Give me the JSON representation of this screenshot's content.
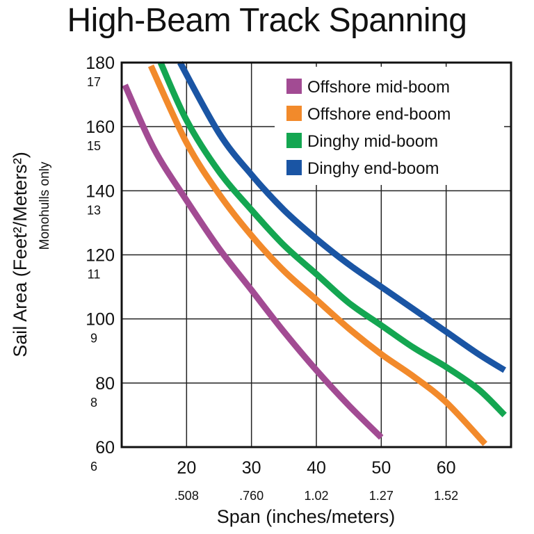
{
  "chart_data": {
    "type": "line",
    "title": "High-Beam Track Spanning",
    "xlabel": "Span (inches/meters)",
    "ylabel": "Sail Area (Feet²/Meters²)",
    "ylabel_sub": "Monohulls only",
    "xlim": [
      10,
      70
    ],
    "ylim": [
      60,
      180
    ],
    "x_ticks": [
      {
        "value": 20,
        "label": "20",
        "sublabel": ".508"
      },
      {
        "value": 30,
        "label": "30",
        "sublabel": ".760"
      },
      {
        "value": 40,
        "label": "40",
        "sublabel": "1.02"
      },
      {
        "value": 50,
        "label": "50",
        "sublabel": "1.27"
      },
      {
        "value": 60,
        "label": "60",
        "sublabel": "1.52"
      }
    ],
    "y_ticks": [
      {
        "value": 60,
        "label": "60",
        "sublabel": "6"
      },
      {
        "value": 80,
        "label": "80",
        "sublabel": "8"
      },
      {
        "value": 100,
        "label": "100",
        "sublabel": "9"
      },
      {
        "value": 120,
        "label": "120",
        "sublabel": "11"
      },
      {
        "value": 140,
        "label": "140",
        "sublabel": "13"
      },
      {
        "value": 160,
        "label": "160",
        "sublabel": "15"
      },
      {
        "value": 180,
        "label": "180",
        "sublabel": "17"
      }
    ],
    "grid": true,
    "legend_position": "top-right",
    "series": [
      {
        "name": "Offshore mid-boom",
        "color": "#a24b93",
        "x": [
          10.5,
          15,
          20,
          25,
          30,
          35,
          40,
          45,
          50
        ],
        "y": [
          173,
          153,
          137,
          122,
          109,
          96,
          84,
          73,
          63
        ]
      },
      {
        "name": "Offshore end-boom",
        "color": "#f28a2b",
        "x": [
          14.5,
          20,
          25,
          30,
          35,
          40,
          45,
          50,
          55,
          60,
          66
        ],
        "y": [
          179,
          155,
          139,
          126,
          115,
          106,
          97,
          89,
          82,
          74,
          61
        ]
      },
      {
        "name": "Dinghy mid-boom",
        "color": "#14a651",
        "x": [
          16,
          20,
          25,
          30,
          35,
          40,
          45,
          50,
          55,
          60,
          65,
          69
        ],
        "y": [
          180,
          162,
          146,
          134,
          123,
          114,
          105,
          98,
          91,
          85,
          78,
          70
        ]
      },
      {
        "name": "Dinghy end-boom",
        "color": "#1a55a4",
        "x": [
          19,
          25,
          30,
          35,
          40,
          45,
          50,
          55,
          60,
          65,
          69
        ],
        "y": [
          180,
          158,
          145,
          134,
          125,
          117,
          110,
          103,
          96,
          89,
          84
        ]
      }
    ]
  }
}
